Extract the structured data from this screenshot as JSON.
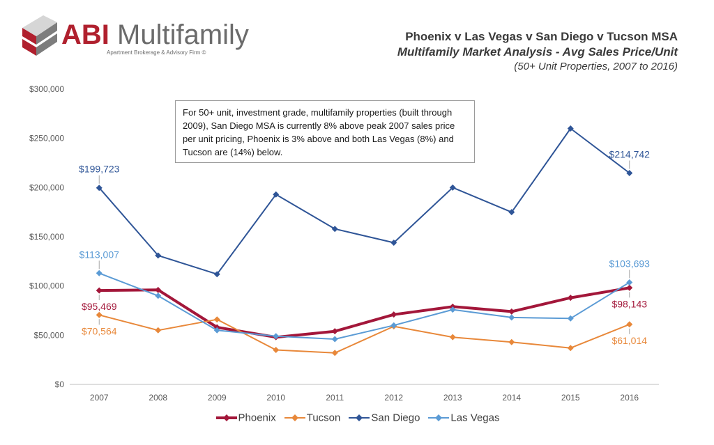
{
  "logo": {
    "brand_abi": "ABI",
    "brand_mf": " Multifamily",
    "tagline": "Apartment Brokerage & Advisory Firm ©"
  },
  "header": {
    "title": "Phoenix v Las Vegas v San Diego v Tucson MSA",
    "subtitle": "Multifamily Market Analysis - Avg Sales Price/Unit",
    "note": "(50+ Unit Properties, 2007 to 2016)"
  },
  "annotation": "For 50+ unit, investment grade, multifamily properties (built through 2009), San Diego MSA is currently 8% above peak 2007 sales price per unit pricing, Phoenix is 3% above and both Las Vegas (8%) and Tucson are (14%) below.",
  "chart_data": {
    "type": "line",
    "categories": [
      "2007",
      "2008",
      "2009",
      "2010",
      "2011",
      "2012",
      "2013",
      "2014",
      "2015",
      "2016"
    ],
    "ylim": [
      0,
      300000
    ],
    "yticks": [
      0,
      50000,
      100000,
      150000,
      200000,
      250000,
      300000
    ],
    "ytick_labels": [
      "$0",
      "$50,000",
      "$100,000",
      "$150,000",
      "$200,000",
      "$250,000",
      "$300,000"
    ],
    "grid": false,
    "legend_position": "bottom",
    "series": [
      {
        "name": "Phoenix",
        "color": "#a3173a",
        "width": 4,
        "values": [
          95469,
          96000,
          58000,
          48000,
          54000,
          71000,
          79000,
          74000,
          88000,
          98143
        ],
        "labels": [
          {
            "index": 0,
            "text": "$95,469",
            "pos": "below"
          },
          {
            "index": 9,
            "text": "$98,143",
            "pos": "below"
          }
        ]
      },
      {
        "name": "Tucson",
        "color": "#e8883a",
        "width": 2,
        "values": [
          70564,
          55000,
          66000,
          35000,
          32000,
          59000,
          48000,
          43000,
          37000,
          61014
        ],
        "labels": [
          {
            "index": 0,
            "text": "$70,564",
            "pos": "below"
          },
          {
            "index": 9,
            "text": "$61,014",
            "pos": "below"
          }
        ]
      },
      {
        "name": "San Diego",
        "color": "#2f5597",
        "width": 2,
        "values": [
          199723,
          131000,
          112000,
          193000,
          158000,
          144000,
          200000,
          175000,
          260000,
          214742
        ],
        "labels": [
          {
            "index": 0,
            "text": "$199,723",
            "pos": "above"
          },
          {
            "index": 9,
            "text": "$214,742",
            "pos": "above"
          }
        ]
      },
      {
        "name": "Las Vegas",
        "color": "#5b9bd5",
        "width": 2,
        "values": [
          113007,
          90000,
          55000,
          49000,
          46000,
          60000,
          76000,
          68000,
          67000,
          103693
        ],
        "labels": [
          {
            "index": 0,
            "text": "$113,007",
            "pos": "above"
          },
          {
            "index": 9,
            "text": "$103,693",
            "pos": "above"
          }
        ]
      }
    ]
  }
}
